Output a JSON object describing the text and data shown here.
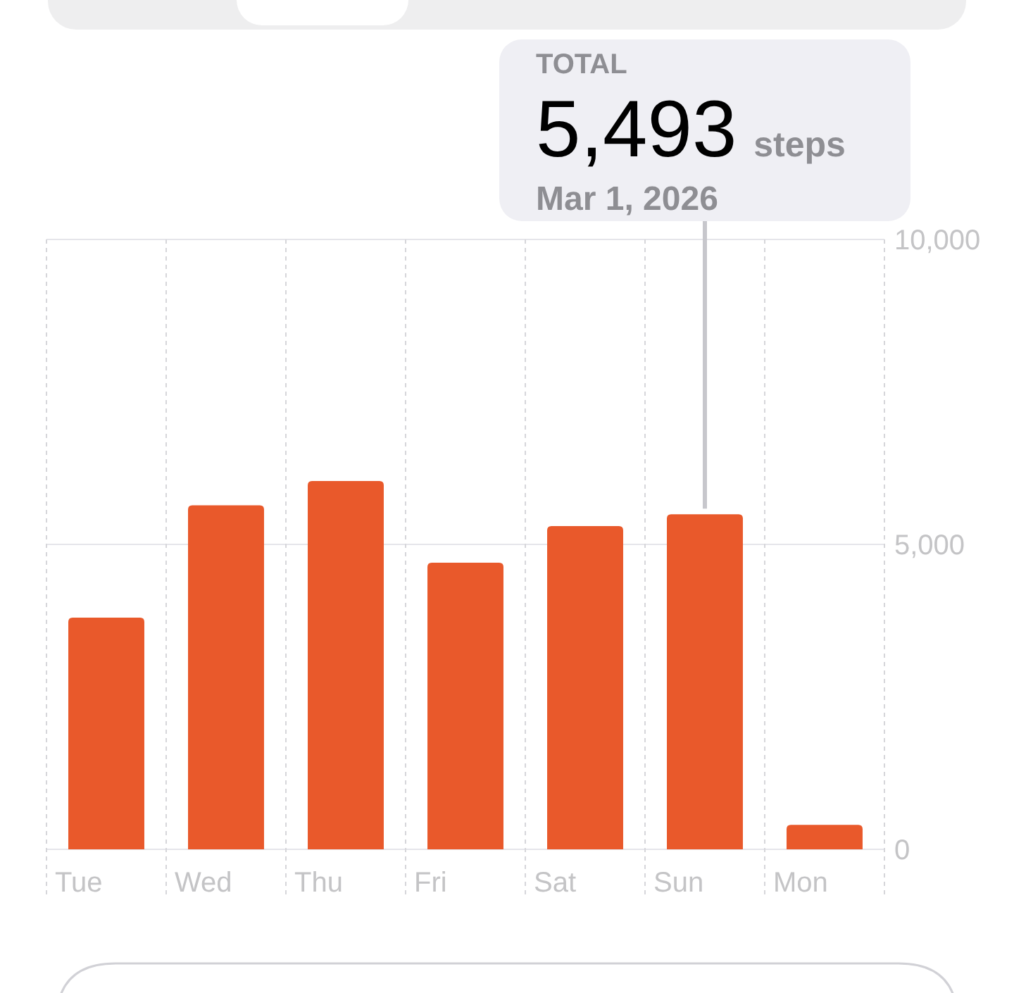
{
  "chart_data": {
    "type": "bar",
    "categories": [
      "Tue",
      "Wed",
      "Thu",
      "Fri",
      "Sat",
      "Sun",
      "Mon"
    ],
    "values": [
      3800,
      5640,
      6040,
      4700,
      5300,
      5493,
      400
    ],
    "color": "#e9592b",
    "ylim": [
      0,
      10000
    ],
    "yticks": [
      {
        "value": 0,
        "label": "0"
      },
      {
        "value": 5000,
        "label": "5,000"
      },
      {
        "value": 10000,
        "label": "10,000"
      }
    ],
    "grid": true,
    "ref_lines": [
      {
        "axis": "x",
        "value": "Sun",
        "color": "#c7c7cc"
      }
    ],
    "annotations": [
      "TOTAL",
      "5,493",
      "steps",
      "Mar 1, 2026"
    ]
  }
}
